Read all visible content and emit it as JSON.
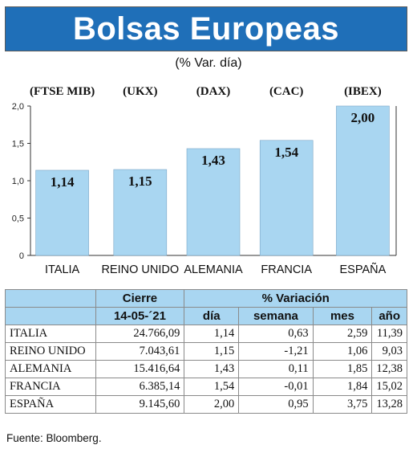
{
  "title": "Bolsas Europeas",
  "subtitle": "(% Var. día)",
  "chart_data": {
    "type": "bar",
    "categories": [
      "ITALIA",
      "REINO UNIDO",
      "ALEMANIA",
      "FRANCIA",
      "ESPAÑA"
    ],
    "index_labels": [
      "(FTSE MIB)",
      "(UKX)",
      "(DAX)",
      "(CAC)",
      "(IBEX)"
    ],
    "values": [
      1.14,
      1.15,
      1.43,
      1.54,
      2.0
    ],
    "value_labels": [
      "1,14",
      "1,15",
      "1,43",
      "1,54",
      "2,00"
    ],
    "yticks": [
      "0",
      "0,5",
      "1,0",
      "1,5",
      "2,0"
    ],
    "ylim": [
      0,
      2.0
    ],
    "ytick_values": [
      0,
      0.5,
      1.0,
      1.5,
      2.0
    ],
    "bar_color": "#a9d6f1",
    "grid": false
  },
  "table": {
    "header_top": {
      "cierre": "Cierre",
      "variacion": "% Variación"
    },
    "header_sub": {
      "date": "14-05-´21",
      "dia": "día",
      "semana": "semana",
      "mes": "mes",
      "anio": "año"
    },
    "rows": [
      {
        "country": "ITALIA",
        "cierre": "24.766,09",
        "dia": "1,14",
        "semana": "0,63",
        "mes": "2,59",
        "anio": "11,39"
      },
      {
        "country": "REINO UNIDO",
        "cierre": "7.043,61",
        "dia": "1,15",
        "semana": "-1,21",
        "mes": "1,06",
        "anio": "9,03"
      },
      {
        "country": "ALEMANIA",
        "cierre": "15.416,64",
        "dia": "1,43",
        "semana": "0,11",
        "mes": "1,85",
        "anio": "12,38"
      },
      {
        "country": "FRANCIA",
        "cierre": "6.385,14",
        "dia": "1,54",
        "semana": "-0,01",
        "mes": "1,84",
        "anio": "15,02"
      },
      {
        "country": "ESPAÑA",
        "cierre": "9.145,60",
        "dia": "2,00",
        "semana": "0,95",
        "mes": "3,75",
        "anio": "13,28"
      }
    ]
  },
  "source": "Fuente: Bloomberg.",
  "colors": {
    "banner": "#1f6fb8",
    "header_fill": "#a9d6f1"
  }
}
